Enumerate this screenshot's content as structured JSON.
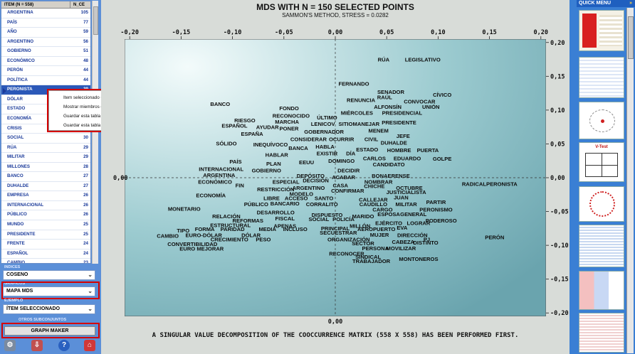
{
  "table": {
    "headers": {
      "item": "ITEM (N = 558)",
      "count": "N_CE"
    },
    "rows": [
      {
        "item": "ARGENTINA",
        "count": "105"
      },
      {
        "item": "PAÍS",
        "count": "77"
      },
      {
        "item": "AÑO",
        "count": "59"
      },
      {
        "item": "ARGENTINO",
        "count": "56"
      },
      {
        "item": "GOBIERNO",
        "count": "51"
      },
      {
        "item": "ECONÓMICO",
        "count": "48"
      },
      {
        "item": "PERÓN",
        "count": "44"
      },
      {
        "item": "POLÍTICA",
        "count": "44"
      },
      {
        "item": "PERONISTA",
        "count": "39"
      },
      {
        "item": "DÓLAR",
        "count": ""
      },
      {
        "item": "ESTADO",
        "count": ""
      },
      {
        "item": "ECONOMÍA",
        "count": ""
      },
      {
        "item": "CRISIS",
        "count": ""
      },
      {
        "item": "SOCIAL",
        "count": "30"
      },
      {
        "item": "RÚA",
        "count": "29"
      },
      {
        "item": "MILITAR",
        "count": "29"
      },
      {
        "item": "MILLONES",
        "count": "28"
      },
      {
        "item": "BANCO",
        "count": "27"
      },
      {
        "item": "DUHALDE",
        "count": "27"
      },
      {
        "item": "EMPRESA",
        "count": "26"
      },
      {
        "item": "INTERNACIONAL",
        "count": "26"
      },
      {
        "item": "PÚBLICO",
        "count": "26"
      },
      {
        "item": "MUNDO",
        "count": "25"
      },
      {
        "item": "PRESIDENTE",
        "count": "25"
      },
      {
        "item": "FRENTE",
        "count": "24"
      },
      {
        "item": "ESPAÑOL",
        "count": "24"
      },
      {
        "item": "CAMBIO",
        "count": "23"
      }
    ]
  },
  "context_menu": [
    "Item seleccionado =PERONISTA",
    "Mostrar miembros del item seleccionado",
    "Guardar esta tabla como .xls archivo",
    "Guardar esta tabla como archivo .csv"
  ],
  "controls": {
    "indices_label": "INDICES",
    "indices_value": "COSENO",
    "graficos_label": "GRAFICOS",
    "graficos_value": "MAPA  MDS",
    "ejemplo_label": "EJEMPLO",
    "ejemplo_value": "ÍTEM SELECCIONADO",
    "otros_label": "OTROS SUBCONJUNTOS",
    "graph_maker": "GRAPH MAKER"
  },
  "chart": {
    "title": "MDS WITH N = 150 SELECTED POINTS",
    "subtitle": "SAMMON'S METHOD,  STRESS = 0.0282",
    "footer": "A SINGULAR VALUE DECOMPOSITION OF THE COOCCURRENCE MATRIX (558 X 558) HAS BEEN PERFORMED FIRST."
  },
  "quick_menu": {
    "title": "QUICK MENU",
    "vtest": "V-Test"
  },
  "colors": {
    "panel": "#5b8fd8",
    "selected_row": "#2b58b8",
    "highlight": "#d40000",
    "plot_teal": "#7fb3bc"
  },
  "chart_data": {
    "type": "scatter",
    "x_ticks": [
      "-0,20",
      "-0,15",
      "-0,10",
      "-0,05",
      "0,00",
      "0,05",
      "0,10",
      "0,15",
      "0,20"
    ],
    "y_ticks": [
      "0,20",
      "0,15",
      "0,10",
      "0,05",
      "0,00",
      "-0,05",
      "-0,10",
      "-0,15",
      "-0,20"
    ],
    "xlim": [
      -0.205,
      0.205
    ],
    "ylim": [
      -0.205,
      0.205
    ],
    "points": [
      [
        "RÚA",
        0.047,
        0.172
      ],
      [
        "LEGISLATIVO",
        0.085,
        0.172
      ],
      [
        "FERNANDO",
        0.018,
        0.136
      ],
      [
        "SENADOR",
        0.054,
        0.124
      ],
      [
        "CÍVICO",
        0.104,
        0.12
      ],
      [
        "RAÚL",
        0.048,
        0.116
      ],
      [
        "RENUNCIA",
        0.025,
        0.112
      ],
      [
        "CONVOCAR",
        0.082,
        0.11
      ],
      [
        "ALFONSÍN",
        0.051,
        0.102
      ],
      [
        "UNIÓN",
        0.093,
        0.102
      ],
      [
        "BANCO",
        -0.112,
        0.106
      ],
      [
        "FONDO",
        -0.045,
        0.1
      ],
      [
        "MIÉRCOLES",
        0.021,
        0.093
      ],
      [
        "PRESIDENCIAL",
        0.065,
        0.093
      ],
      [
        "RECONOCIDO",
        -0.043,
        0.089
      ],
      [
        "ÚLTIMO",
        -0.008,
        0.086
      ],
      [
        "RIESGO",
        -0.088,
        0.082
      ],
      [
        "MARCHA",
        -0.047,
        0.08
      ],
      [
        "PRESIDENTE",
        0.062,
        0.079
      ],
      [
        "LENICOV",
        -0.012,
        0.077
      ],
      [
        "SITIO",
        0.01,
        0.077
      ],
      [
        "MANEJAR",
        0.03,
        0.077
      ],
      [
        "ESPAÑOL",
        -0.098,
        0.074
      ],
      [
        "AYUDAR",
        -0.066,
        0.072
      ],
      [
        "PONER",
        -0.045,
        0.07
      ],
      [
        "GOBERNADOR",
        -0.011,
        0.065
      ],
      [
        "MENEM",
        0.042,
        0.067
      ],
      [
        "ESPAÑA",
        -0.081,
        0.062
      ],
      [
        "CONSIDERAR",
        -0.026,
        0.054
      ],
      [
        "OCURRIR",
        0.006,
        0.054
      ],
      [
        "CIVIL",
        0.035,
        0.054
      ],
      [
        "JEFE",
        0.066,
        0.059
      ],
      [
        "SÓLIDO",
        -0.106,
        0.048
      ],
      [
        "INEQUÍVOCO",
        -0.063,
        0.046
      ],
      [
        "BANCA",
        -0.036,
        0.041
      ],
      [
        "HABLA",
        -0.01,
        0.043
      ],
      [
        "DUHALDE",
        0.057,
        0.049
      ],
      [
        "ESTADO",
        0.031,
        0.039
      ],
      [
        "HOMBRE",
        0.062,
        0.038
      ],
      [
        "PUERTA",
        0.09,
        0.038
      ],
      [
        "HABLAR",
        -0.057,
        0.031
      ],
      [
        "EXISTIR",
        -0.008,
        0.033
      ],
      [
        "DÍA",
        0.015,
        0.033
      ],
      [
        "CARLOS",
        0.038,
        0.026
      ],
      [
        "EDUARDO",
        0.07,
        0.026
      ],
      [
        "GOLPE",
        0.104,
        0.025
      ],
      [
        "PAÍS",
        -0.097,
        0.021
      ],
      [
        "PLAN",
        -0.06,
        0.018
      ],
      [
        "EEUU",
        -0.028,
        0.02
      ],
      [
        "DOMINGO",
        0.006,
        0.022
      ],
      [
        "CANDIDATO",
        0.052,
        0.017
      ],
      [
        "INTERNACIONAL",
        -0.111,
        0.01
      ],
      [
        "GOBIERNO",
        -0.067,
        0.008
      ],
      [
        "DECIDIR",
        0.013,
        0.008
      ],
      [
        "ARGENTINA",
        -0.113,
        0.001
      ],
      [
        "DEPÓSITO",
        -0.024,
        0.0
      ],
      [
        "ACABAR",
        0.008,
        -0.002
      ],
      [
        "BONAERENSE",
        0.054,
        0.0
      ],
      [
        "DECISIÓN",
        -0.019,
        -0.007
      ],
      [
        "ECONÓMICO",
        -0.117,
        -0.009
      ],
      [
        "ESPECIAL",
        -0.048,
        -0.009
      ],
      [
        "NOMBRAR",
        0.042,
        -0.009
      ],
      [
        "RADICAL",
        0.135,
        -0.012
      ],
      [
        "PERONISTA",
        0.162,
        -0.012
      ],
      [
        "FIN",
        -0.093,
        -0.014
      ],
      [
        "CASA",
        0.005,
        -0.014
      ],
      [
        "CHICHE",
        0.038,
        -0.015
      ],
      [
        "OCTUBRE",
        0.072,
        -0.018
      ],
      [
        "RESTRICCIÓN",
        -0.058,
        -0.02
      ],
      [
        "ARGENTINO",
        -0.026,
        -0.018
      ],
      [
        "JUSTICIALISTA",
        0.069,
        -0.024
      ],
      [
        "CONFIRMAR",
        0.012,
        -0.022
      ],
      [
        "ECONOMÍA",
        -0.121,
        -0.029
      ],
      [
        "MODELO",
        -0.033,
        -0.027
      ],
      [
        "JUAN",
        0.064,
        -0.032
      ],
      [
        "LIBRE",
        -0.062,
        -0.033
      ],
      [
        "ACCESO",
        -0.038,
        -0.033
      ],
      [
        "SANTO",
        -0.011,
        -0.033
      ],
      [
        "CALLEJAR",
        0.037,
        -0.035
      ],
      [
        "PARTIR",
        0.098,
        -0.039
      ],
      [
        "PÚBLICO",
        -0.077,
        -0.042
      ],
      [
        "BANCARIO",
        -0.049,
        -0.041
      ],
      [
        "CORRALITO",
        -0.013,
        -0.042
      ],
      [
        "CAUDILLO",
        0.037,
        -0.042
      ],
      [
        "MILITAR",
        0.069,
        -0.042
      ],
      [
        "MONETARIO",
        -0.147,
        -0.049
      ],
      [
        "DESARROLLO",
        -0.058,
        -0.054
      ],
      [
        "CARGO",
        0.046,
        -0.05
      ],
      [
        "PERONISMO",
        0.098,
        -0.05
      ],
      [
        "RELACIÓN",
        -0.106,
        -0.06
      ],
      [
        "DISPUESTO",
        -0.008,
        -0.058
      ],
      [
        "MARIDO",
        0.027,
        -0.06
      ],
      [
        "ESPOSA",
        0.052,
        -0.057
      ],
      [
        "GENERAL",
        0.076,
        -0.057
      ],
      [
        "REFORMAS",
        -0.085,
        -0.066
      ],
      [
        "FISCAL",
        -0.049,
        -0.063
      ],
      [
        "SOCIAL",
        -0.016,
        -0.064
      ],
      [
        "POLICÍA",
        0.008,
        -0.064
      ],
      [
        "PODEROSO",
        0.103,
        -0.066
      ],
      [
        "ESTRUCTURAL",
        -0.102,
        -0.073
      ],
      [
        "APENAS",
        -0.049,
        -0.074
      ],
      [
        "EJÉRCITO",
        0.052,
        -0.07
      ],
      [
        "LOGRAR",
        0.081,
        -0.07
      ],
      [
        "FORMA",
        -0.127,
        -0.079
      ],
      [
        "PARIDAD",
        -0.1,
        -0.079
      ],
      [
        "MEDIA",
        -0.066,
        -0.079
      ],
      [
        "INCLUSO",
        -0.039,
        -0.079
      ],
      [
        "PRINCIPAL",
        0.0,
        -0.078
      ],
      [
        "MILLÓN",
        0.024,
        -0.074
      ],
      [
        "AEROPUERTO",
        0.04,
        -0.079
      ],
      [
        "EVA",
        0.065,
        -0.077
      ],
      [
        "TIPO",
        -0.148,
        -0.081
      ],
      [
        "SECUESTRAR",
        0.003,
        -0.084
      ],
      [
        "MUJER",
        0.043,
        -0.087
      ],
      [
        "DIRECCIÓN",
        0.075,
        -0.088
      ],
      [
        "CAMBIO",
        -0.163,
        -0.089
      ],
      [
        "EURO-DÓLAR",
        -0.128,
        -0.088
      ],
      [
        "DÓLAR",
        -0.082,
        -0.088
      ],
      [
        "ORGANIZACIÓN",
        0.013,
        -0.094
      ],
      [
        "PJ",
        0.089,
        -0.094
      ],
      [
        "CRECIMIENTO",
        -0.103,
        -0.094
      ],
      [
        "PESO",
        -0.07,
        -0.094
      ],
      [
        "CABEZA",
        0.066,
        -0.098
      ],
      [
        "DISTINTO",
        0.088,
        -0.099
      ],
      [
        "PERÓN",
        0.155,
        -0.091
      ],
      [
        "CONVERTIBILIDAD",
        -0.139,
        -0.101
      ],
      [
        "SECTOR",
        0.027,
        -0.1
      ],
      [
        "PERSONA",
        0.039,
        -0.107
      ],
      [
        "MOVILIZAR",
        0.064,
        -0.107
      ],
      [
        "EURO MEJORAR",
        -0.13,
        -0.108
      ],
      [
        "RECONOCER",
        0.011,
        -0.115
      ],
      [
        "SINDICAL",
        0.032,
        -0.12
      ],
      [
        "MONTONEROS",
        0.081,
        -0.123
      ],
      [
        "TRABAJADOR",
        0.035,
        -0.126
      ]
    ]
  }
}
